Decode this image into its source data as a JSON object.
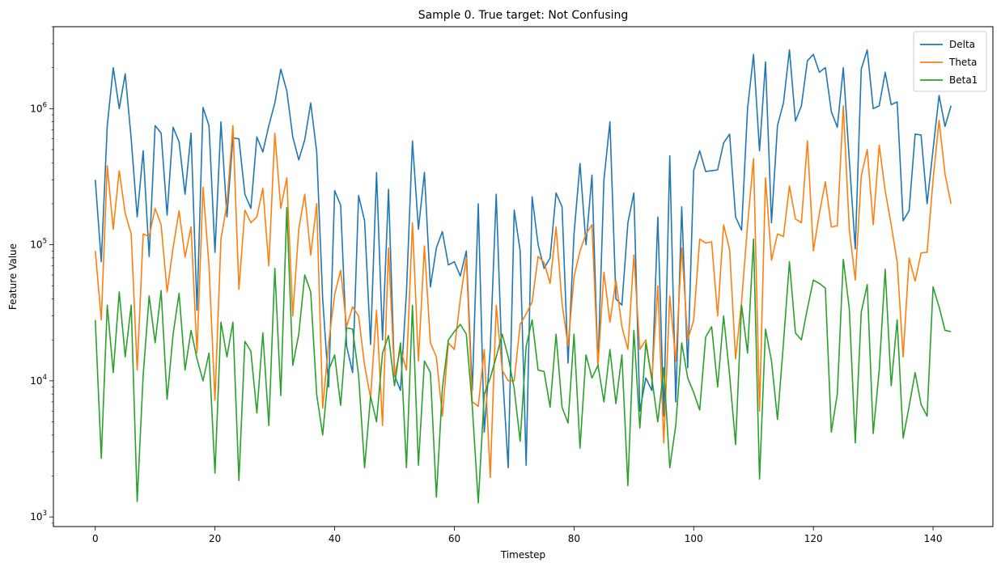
{
  "chart_data": {
    "type": "line",
    "title": "Sample 0. True target: Not Confusing",
    "xlabel": "Timestep",
    "ylabel": "Feature Value",
    "xlim": [
      -7,
      150
    ],
    "ylim": [
      850,
      4000000
    ],
    "yscale": "log",
    "xticks": [
      0,
      20,
      40,
      60,
      80,
      100,
      120,
      140
    ],
    "yticks": [
      {
        "value": 1000,
        "base": "10",
        "exp": "3"
      },
      {
        "value": 10000,
        "base": "10",
        "exp": "4"
      },
      {
        "value": 100000,
        "base": "10",
        "exp": "5"
      },
      {
        "value": 1000000,
        "base": "10",
        "exp": "6"
      }
    ],
    "grid": false,
    "legend_position": "top-right",
    "series": [
      {
        "name": "Delta",
        "color": "#1f77b4",
        "values": [
          300000,
          75000,
          750000,
          2000000,
          1000000,
          1800000,
          600000,
          160000,
          490000,
          82000,
          750000,
          660000,
          165000,
          730000,
          570000,
          235000,
          660000,
          33000,
          1020000,
          750000,
          88000,
          800000,
          160000,
          610000,
          600000,
          235000,
          185000,
          620000,
          480000,
          750000,
          1100000,
          1950000,
          1350000,
          620000,
          420000,
          590000,
          1100000,
          480000,
          40000,
          9000,
          250000,
          195000,
          18000,
          11500,
          230000,
          150000,
          18500,
          340000,
          20000,
          255000,
          11000,
          8500,
          45000,
          580000,
          130000,
          340000,
          49000,
          95000,
          125000,
          71000,
          75000,
          59000,
          90000,
          8500,
          200000,
          4200,
          17000,
          235000,
          12500,
          2300,
          180000,
          90000,
          2400,
          225000,
          100000,
          67000,
          80000,
          240000,
          190000,
          13500,
          120000,
          395000,
          100000,
          325000,
          12500,
          300000,
          800000,
          40000,
          36000,
          145000,
          240000,
          6000,
          10500,
          8500,
          160000,
          5500,
          450000,
          7000,
          190000,
          12500,
          350000,
          490000,
          345000,
          350000,
          355000,
          560000,
          650000,
          160000,
          128000,
          1000000,
          2500000,
          490000,
          2200000,
          145000,
          750000,
          1100000,
          2700000,
          810000,
          1050000,
          2250000,
          2500000,
          1850000,
          2000000,
          950000,
          730000,
          2000000,
          420000,
          93000,
          1950000,
          2700000,
          1000000,
          1050000,
          1850000,
          1070000,
          1120000,
          150000,
          178000,
          650000,
          640000,
          200000,
          500000,
          1250000,
          740000,
          1050000
        ]
      },
      {
        "name": "Theta",
        "color": "#ff7f0e",
        "values": [
          90000,
          28000,
          380000,
          130000,
          350000,
          170000,
          120000,
          12000,
          120000,
          115000,
          185000,
          140000,
          45000,
          95000,
          178000,
          81000,
          135000,
          16000,
          265000,
          70000,
          7200,
          110000,
          200000,
          750000,
          47000,
          180000,
          145000,
          160000,
          260000,
          70000,
          660000,
          185000,
          310000,
          30000,
          130000,
          235000,
          84000,
          200000,
          6300,
          19000,
          43000,
          65000,
          25000,
          35000,
          30000,
          13000,
          7500,
          33000,
          4700,
          95000,
          11000,
          17000,
          12000,
          145000,
          14000,
          98000,
          19000,
          15000,
          5500,
          19000,
          17000,
          40000,
          80000,
          7000,
          6500,
          17000,
          1950,
          36000,
          12000,
          10000,
          10000,
          26000,
          31000,
          38000,
          82000,
          74000,
          52000,
          135000,
          37000,
          18000,
          58000,
          90000,
          120000,
          140000,
          13000,
          63000,
          27000,
          55000,
          25000,
          17000,
          84000,
          17000,
          20000,
          10000,
          50000,
          3500,
          42000,
          14000,
          95000,
          20000,
          28000,
          110000,
          103000,
          105000,
          30000,
          140000,
          92000,
          14500,
          38000,
          140000,
          430000,
          6000,
          310000,
          77000,
          120000,
          115000,
          270000,
          155000,
          145000,
          580000,
          90000,
          170000,
          290000,
          135000,
          138000,
          1050000,
          130000,
          55000,
          320000,
          500000,
          140000,
          540000,
          250000,
          140000,
          75000,
          15000,
          80000,
          54000,
          87000,
          88000,
          300000,
          820000,
          330000,
          200000
        ]
      },
      {
        "name": "Beta1",
        "color": "#2ca02c",
        "values": [
          28000,
          2700,
          36000,
          11500,
          45000,
          15000,
          36000,
          1300,
          11000,
          42000,
          19000,
          46000,
          7300,
          22000,
          44000,
          12000,
          23500,
          14500,
          10000,
          16000,
          2100,
          27000,
          15000,
          27000,
          1850,
          19500,
          16500,
          5800,
          22500,
          4700,
          67000,
          7800,
          188000,
          13000,
          22000,
          60000,
          45000,
          7900,
          4000,
          12000,
          15500,
          6600,
          24500,
          24000,
          11000,
          2300,
          7700,
          5000,
          16000,
          21500,
          9200,
          19000,
          2300,
          36000,
          2400,
          14000,
          11500,
          1400,
          8800,
          20000,
          23000,
          26000,
          22000,
          6500,
          1270,
          8000,
          10500,
          15000,
          22000,
          15000,
          8800,
          3600,
          18000,
          28000,
          12000,
          11700,
          6400,
          22000,
          6400,
          4900,
          22000,
          3200,
          15500,
          10500,
          13000,
          7000,
          17000,
          6800,
          15500,
          1700,
          23500,
          4500,
          19000,
          10500,
          5000,
          12500,
          2300,
          4700,
          19000,
          10500,
          8200,
          6100,
          21000,
          25000,
          9000,
          30000,
          11000,
          3400,
          36000,
          16000,
          110000,
          1900,
          24000,
          14000,
          5200,
          19000,
          75000,
          22500,
          20000,
          34000,
          55000,
          52000,
          48000,
          4200,
          8000,
          78000,
          34000,
          3500,
          32000,
          51000,
          4100,
          12000,
          66000,
          9200,
          28000,
          3800,
          6500,
          11500,
          6700,
          5500,
          49000,
          35000,
          23500,
          23000
        ]
      }
    ]
  }
}
